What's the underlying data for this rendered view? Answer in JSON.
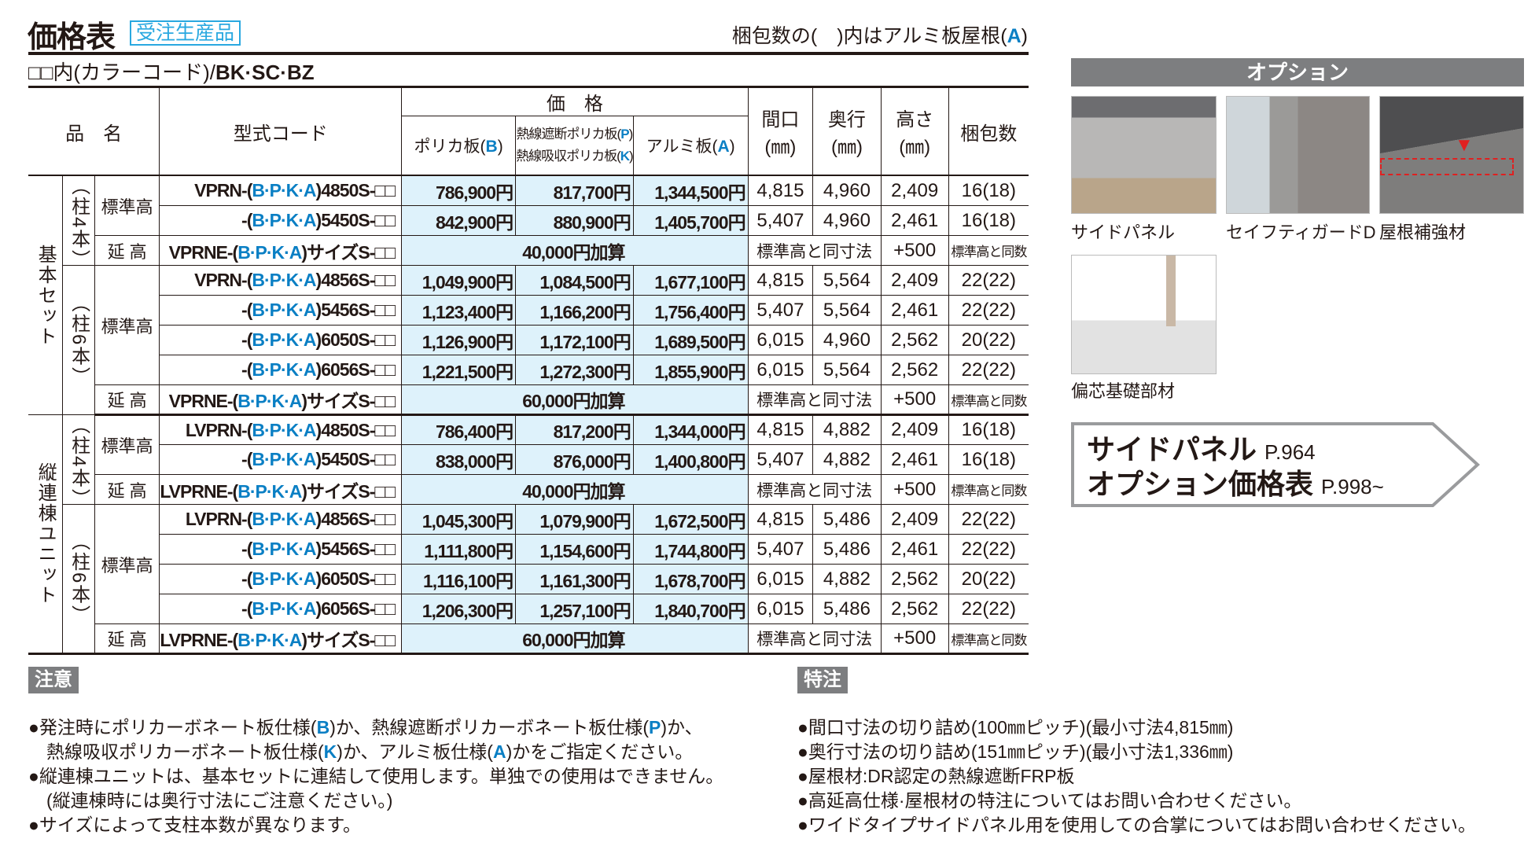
{
  "header": {
    "title": "価格表",
    "badge": "受注生産品",
    "pack_note_pre": "梱包数の(　)内はアルミ板屋根(",
    "pack_note_letter": "A",
    "pack_note_post": ")",
    "color_note_pre": "□□内(カラーコード)/",
    "color_note_codes": "BK·SC·BZ"
  },
  "table": {
    "headers": {
      "name": "品　名",
      "code": "型式コード",
      "price": "価　格",
      "price_b": [
        "ポリカ板(",
        "B",
        ")"
      ],
      "price_p": [
        "熱線遮断ポリカ板(",
        "P",
        ")"
      ],
      "price_k": [
        "熱線吸収ポリカ板(",
        "K",
        ")"
      ],
      "price_a": [
        "アルミ板(",
        "A",
        ")"
      ],
      "width": [
        "間口",
        "(㎜)"
      ],
      "depth": [
        "奥行",
        "(㎜)"
      ],
      "height": [
        "高さ",
        "(㎜)"
      ],
      "pack": "梱包数"
    },
    "groups": [
      {
        "label": "基本セット",
        "subgroups": [
          {
            "label": "（柱4本）",
            "heights": [
              {
                "label": "標準高",
                "rows": [
                  {
                    "code": [
                      "VPRN-(",
                      "B·P·K·A",
                      ")4850S-□□"
                    ],
                    "prices": [
                      "786,900円",
                      "817,700円",
                      "1,344,500円"
                    ],
                    "width": "4,815",
                    "depth": "4,960",
                    "height": "2,409",
                    "pack": "16(18)"
                  },
                  {
                    "code": [
                      "-(",
                      "B·P·K·A",
                      ")5450S-□□"
                    ],
                    "prices": [
                      "842,900円",
                      "880,900円",
                      "1,405,700円"
                    ],
                    "width": "5,407",
                    "depth": "4,960",
                    "height": "2,461",
                    "pack": "16(18)"
                  }
                ]
              },
              {
                "label": "延 高",
                "rows": [
                  {
                    "ext": true,
                    "code": [
                      "VPRNE-(",
                      "B·P·K·A",
                      ")サイズS-□□"
                    ],
                    "price_add": "40,000円加算",
                    "dims": "標準高と同寸法",
                    "height": "+500",
                    "pack": "標準高と同数"
                  }
                ]
              }
            ]
          },
          {
            "label": "（柱6本）",
            "heights": [
              {
                "label": "標準高",
                "rows": [
                  {
                    "code": [
                      "VPRN-(",
                      "B·P·K·A",
                      ")4856S-□□"
                    ],
                    "prices": [
                      "1,049,900円",
                      "1,084,500円",
                      "1,677,100円"
                    ],
                    "width": "4,815",
                    "depth": "5,564",
                    "height": "2,409",
                    "pack": "22(22)"
                  },
                  {
                    "code": [
                      "-(",
                      "B·P·K·A",
                      ")5456S-□□"
                    ],
                    "prices": [
                      "1,123,400円",
                      "1,166,200円",
                      "1,756,400円"
                    ],
                    "width": "5,407",
                    "depth": "5,564",
                    "height": "2,461",
                    "pack": "22(22)"
                  },
                  {
                    "code": [
                      "-(",
                      "B·P·K·A",
                      ")6050S-□□"
                    ],
                    "prices": [
                      "1,126,900円",
                      "1,172,100円",
                      "1,689,500円"
                    ],
                    "width": "6,015",
                    "depth": "4,960",
                    "height": "2,562",
                    "pack": "20(22)"
                  },
                  {
                    "code": [
                      "-(",
                      "B·P·K·A",
                      ")6056S-□□"
                    ],
                    "prices": [
                      "1,221,500円",
                      "1,272,300円",
                      "1,855,900円"
                    ],
                    "width": "6,015",
                    "depth": "5,564",
                    "height": "2,562",
                    "pack": "22(22)"
                  }
                ]
              },
              {
                "label": "延 高",
                "rows": [
                  {
                    "ext": true,
                    "code": [
                      "VPRNE-(",
                      "B·P·K·A",
                      ")サイズS-□□"
                    ],
                    "price_add": "60,000円加算",
                    "dims": "標準高と同寸法",
                    "height": "+500",
                    "pack": "標準高と同数"
                  }
                ]
              }
            ]
          }
        ]
      },
      {
        "label": "縦連棟ユニット",
        "subgroups": [
          {
            "label": "（柱4本）",
            "heights": [
              {
                "label": "標準高",
                "rows": [
                  {
                    "code": [
                      "LVPRN-(",
                      "B·P·K·A",
                      ")4850S-□□"
                    ],
                    "prices": [
                      "786,400円",
                      "817,200円",
                      "1,344,000円"
                    ],
                    "width": "4,815",
                    "depth": "4,882",
                    "height": "2,409",
                    "pack": "16(18)"
                  },
                  {
                    "code": [
                      "-(",
                      "B·P·K·A",
                      ")5450S-□□"
                    ],
                    "prices": [
                      "838,000円",
                      "876,000円",
                      "1,400,800円"
                    ],
                    "width": "5,407",
                    "depth": "4,882",
                    "height": "2,461",
                    "pack": "16(18)"
                  }
                ]
              },
              {
                "label": "延 高",
                "rows": [
                  {
                    "ext": true,
                    "code": [
                      "LVPRNE-(",
                      "B·P·K·A",
                      ")サイズS-□□"
                    ],
                    "price_add": "40,000円加算",
                    "dims": "標準高と同寸法",
                    "height": "+500",
                    "pack": "標準高と同数"
                  }
                ]
              }
            ]
          },
          {
            "label": "（柱6本）",
            "heights": [
              {
                "label": "標準高",
                "rows": [
                  {
                    "code": [
                      "LVPRN-(",
                      "B·P·K·A",
                      ")4856S-□□"
                    ],
                    "prices": [
                      "1,045,300円",
                      "1,079,900円",
                      "1,672,500円"
                    ],
                    "width": "4,815",
                    "depth": "5,486",
                    "height": "2,409",
                    "pack": "22(22)"
                  },
                  {
                    "code": [
                      "-(",
                      "B·P·K·A",
                      ")5456S-□□"
                    ],
                    "prices": [
                      "1,111,800円",
                      "1,154,600円",
                      "1,744,800円"
                    ],
                    "width": "5,407",
                    "depth": "5,486",
                    "height": "2,461",
                    "pack": "22(22)"
                  },
                  {
                    "code": [
                      "-(",
                      "B·P·K·A",
                      ")6050S-□□"
                    ],
                    "prices": [
                      "1,116,100円",
                      "1,161,300円",
                      "1,678,700円"
                    ],
                    "width": "6,015",
                    "depth": "4,882",
                    "height": "2,562",
                    "pack": "20(22)"
                  },
                  {
                    "code": [
                      "-(",
                      "B·P·K·A",
                      ")6056S-□□"
                    ],
                    "prices": [
                      "1,206,300円",
                      "1,257,100円",
                      "1,840,700円"
                    ],
                    "width": "6,015",
                    "depth": "5,486",
                    "height": "2,562",
                    "pack": "22(22)"
                  }
                ]
              },
              {
                "label": "延 高",
                "rows": [
                  {
                    "ext": true,
                    "code": [
                      "LVPRNE-(",
                      "B·P·K·A",
                      ")サイズS-□□"
                    ],
                    "price_add": "60,000円加算",
                    "dims": "標準高と同寸法",
                    "height": "+500",
                    "pack": "標準高と同数"
                  }
                ]
              }
            ]
          }
        ]
      }
    ]
  },
  "options": {
    "title": "オプション",
    "items": [
      "サイドパネル",
      "セイフティガードD",
      "屋根補強材",
      "偏芯基礎部材"
    ],
    "link_line1": "サイドパネル",
    "link_page1": "P.964",
    "link_line2": "オプション価格表",
    "link_page2": "P.998~"
  },
  "notes": {
    "title": "注意",
    "lines": [
      [
        "●発注時にポリカーボネート板仕様(",
        "B",
        ")か、熱線遮断ポリカーボネート板仕様(",
        "P",
        ")か、"
      ],
      [
        "　熱線吸収ポリカーボネート板仕様(",
        "K",
        ")か、アルミ板仕様(",
        "A",
        ")かをご指定ください。"
      ],
      [
        "●縦連棟ユニットは、基本セットに連結して使用します。単独での使用はできません。"
      ],
      [
        "　(縦連棟時には奥行寸法にご注意ください。)"
      ],
      [
        "●サイズによって支柱本数が異なります。"
      ]
    ]
  },
  "special": {
    "title": "特注",
    "lines": [
      "●間口寸法の切り詰め(100㎜ピッチ)(最小寸法4,815㎜)",
      "●奥行寸法の切り詰め(151㎜ピッチ)(最小寸法1,336㎜)",
      "●屋根材:DR認定の熱線遮断FRP板",
      "●高延高仕様·屋根材の特注についてはお問い合わせください。",
      "●ワイドタイプサイドパネル用を使用しての合掌についてはお問い合わせください。"
    ]
  },
  "colors": {
    "accent_blue": "#0a7fc4",
    "badge_blue": "#29a8e0",
    "price_bg": "#def2fb",
    "tag_gray": "#7d7e80"
  }
}
